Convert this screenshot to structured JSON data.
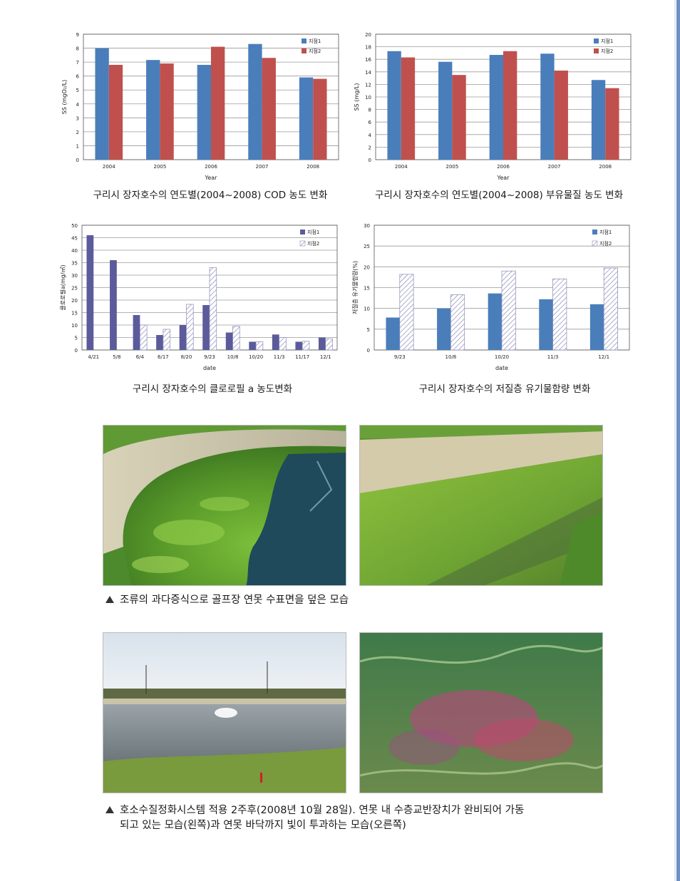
{
  "colors": {
    "series1": "#4a7ebb",
    "series2": "#c0504d",
    "chlorophyll1": "#5b5b9b",
    "hatch": "#b8b8d8",
    "gridline": "#9a9a9a"
  },
  "chart_data": [
    {
      "type": "bar",
      "caption": "구리시 장자호수의 연도별(2004~2008) COD 농도 변화",
      "categories": [
        "2004",
        "2005",
        "2006",
        "2007",
        "2008"
      ],
      "series": [
        {
          "name": "지점1",
          "values": [
            8.0,
            7.15,
            6.8,
            8.3,
            5.9
          ]
        },
        {
          "name": "지점2",
          "values": [
            6.8,
            6.9,
            8.1,
            7.3,
            5.8
          ]
        }
      ],
      "xlabel": "Year",
      "ylabel": "SS (mgO₂/L)",
      "ylim": [
        0,
        9
      ],
      "ytick_step": 1,
      "grid": true,
      "legend": "top-right"
    },
    {
      "type": "bar",
      "caption": "구리시 장자호수의 연도별(2004~2008) 부유물질 농도 변화",
      "categories": [
        "2004",
        "2005",
        "2006",
        "2007",
        "2008"
      ],
      "series": [
        {
          "name": "지점1",
          "values": [
            17.3,
            15.6,
            16.7,
            16.9,
            12.7
          ]
        },
        {
          "name": "지점2",
          "values": [
            16.3,
            13.5,
            17.3,
            14.2,
            11.4
          ]
        }
      ],
      "xlabel": "Year",
      "ylabel": "SS (mg/L)",
      "ylim": [
        0,
        20
      ],
      "ytick_step": 2,
      "grid": true,
      "legend": "top-right"
    },
    {
      "type": "bar",
      "caption": "구리시 장자호수의 클로로필 a 농도변화",
      "categories": [
        "4/21",
        "5/8",
        "6/4",
        "6/17",
        "8/20",
        "9/23",
        "10/8",
        "10/20",
        "11/3",
        "11/17",
        "12/1"
      ],
      "series": [
        {
          "name": "지점1",
          "values": [
            46,
            36,
            14,
            6,
            10,
            18,
            7,
            3.3,
            6.2,
            3.3,
            5
          ]
        },
        {
          "name": "지점2",
          "values": [
            null,
            null,
            10,
            8.3,
            18.3,
            33,
            9.5,
            3.3,
            5,
            3.5,
            4.5
          ]
        }
      ],
      "xlabel": "date",
      "ylabel": "클로로필a(mg/㎥)",
      "ylim": [
        0,
        50
      ],
      "ytick_step": 5,
      "grid": true,
      "legend": "top-right"
    },
    {
      "type": "bar",
      "caption": "구리시 장자호수의 저질층 유기물함량 변화",
      "categories": [
        "9/23",
        "10/8",
        "10/20",
        "11/3",
        "12/1"
      ],
      "series": [
        {
          "name": "지점1",
          "values": [
            7.8,
            10,
            13.6,
            12.2,
            11
          ]
        },
        {
          "name": "지점2",
          "values": [
            18.2,
            13.3,
            19,
            17.1,
            19.7
          ]
        }
      ],
      "xlabel": "date",
      "ylabel": "저질층 유기물함량(%)",
      "ylim": [
        0,
        30
      ],
      "ytick_step": 5,
      "grid": true,
      "legend": "top-right"
    }
  ],
  "photos": {
    "caption1": "조류의 과다증식으로 골프장 연못 수표면을 덮은 모습",
    "caption2_line1": "호소수질정화시스템 적용 2주후(2008년 10월 28일). 연못 내 수층교반장치가 완비되어 가동",
    "caption2_line2": "되고 있는 모습(왼쪽)과 연못 바닥까지 빛이 투과하는 모습(오른쪽)"
  }
}
